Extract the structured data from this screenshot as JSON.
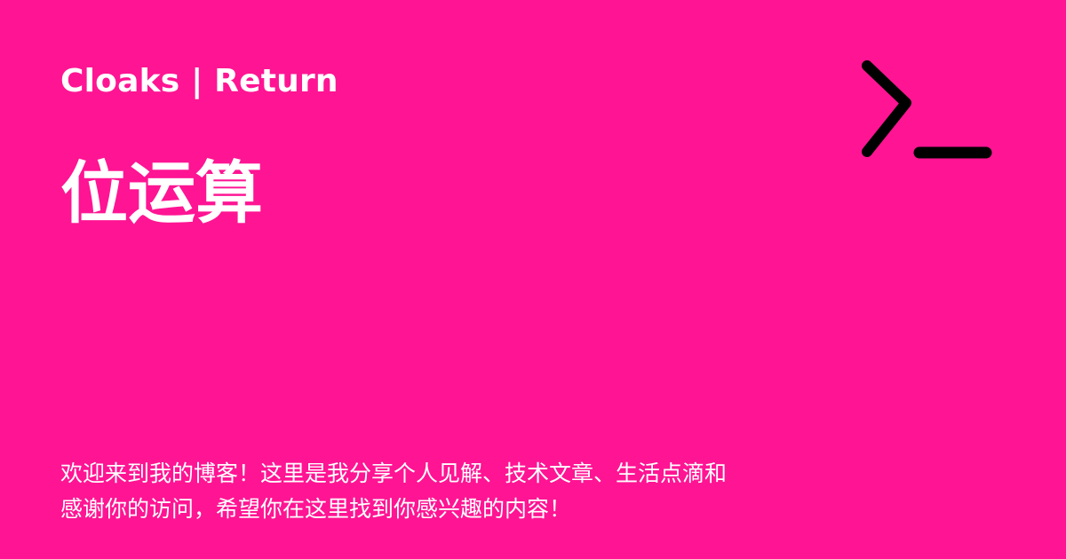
{
  "site": {
    "name": "Cloaks | Return"
  },
  "post": {
    "title": "位运算"
  },
  "description": {
    "line1": "欢迎来到我的博客！这里是我分享个人见解、技术文章、生活点滴和",
    "line2": "感谢你的访问，希望你在这里找到你感兴趣的内容！"
  },
  "logo": {
    "icon": "terminal-prompt-icon"
  },
  "colors": {
    "background": "#FF1493",
    "text": "#FFFFFF",
    "icon": "#000000"
  }
}
